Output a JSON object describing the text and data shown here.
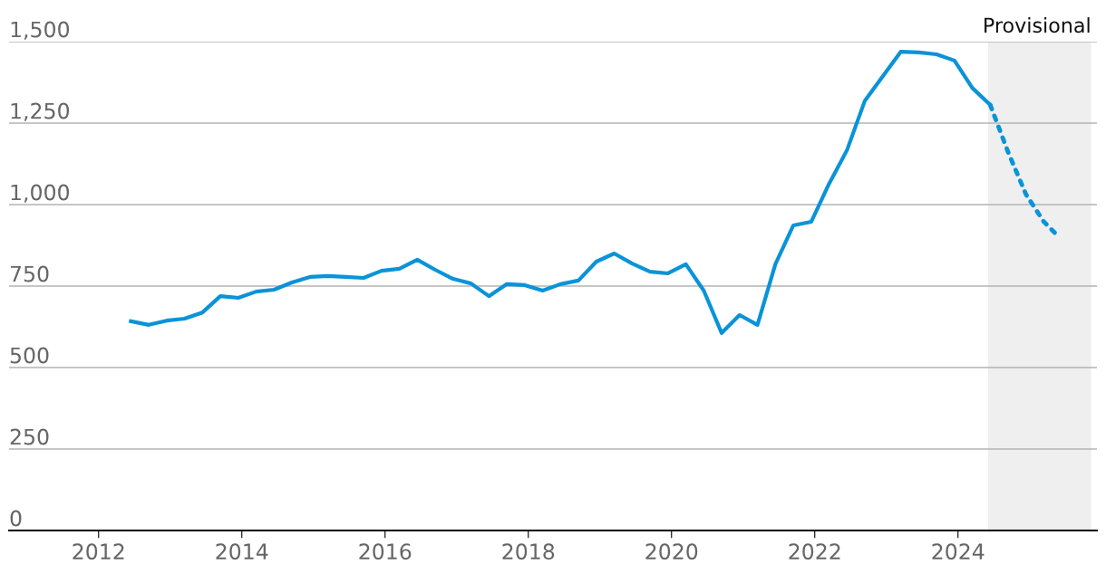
{
  "chart_data": {
    "type": "line",
    "series": [
      {
        "color": "#0a93d8",
        "line_style": "solid",
        "x": [
          2012.45,
          2012.7,
          2012.95,
          2013.2,
          2013.45,
          2013.7,
          2013.95,
          2014.2,
          2014.45,
          2014.7,
          2014.95,
          2015.2,
          2015.45,
          2015.7,
          2015.95,
          2016.2,
          2016.45,
          2016.7,
          2016.95,
          2017.2,
          2017.45,
          2017.7,
          2017.95,
          2018.2,
          2018.45,
          2018.7,
          2018.95,
          2019.2,
          2019.45,
          2019.7,
          2019.95,
          2020.2,
          2020.45,
          2020.7,
          2020.95,
          2021.2,
          2021.45,
          2021.7,
          2021.95,
          2022.2,
          2022.45,
          2022.7,
          2022.95,
          2023.2,
          2023.45,
          2023.7,
          2023.95,
          2024.2,
          2024.45
        ],
        "values": [
          642,
          631,
          644,
          650,
          669,
          719,
          714,
          733,
          739,
          761,
          778,
          781,
          778,
          775,
          797,
          803,
          831,
          800,
          772,
          758,
          719,
          756,
          753,
          736,
          756,
          767,
          825,
          850,
          819,
          794,
          789,
          817,
          736,
          606,
          661,
          631,
          817,
          936,
          947,
          1064,
          1167,
          1319,
          1394,
          1469,
          1467,
          1461,
          1442,
          1358,
          1306
        ]
      },
      {
        "color": "#0a93d8",
        "line_style": "dotted",
        "x": [
          2024.45,
          2024.7,
          2024.95,
          2025.2,
          2025.4
        ],
        "values": [
          1306,
          1161,
          1031,
          947,
          903
        ]
      }
    ],
    "xlim": [
      2010.75,
      2025.94
    ],
    "xticks": [
      2012,
      2014,
      2016,
      2018,
      2020,
      2022,
      2024
    ],
    "ylim": [
      0,
      1500
    ],
    "yticks": [
      0,
      250,
      500,
      750,
      {
        "value": 1000,
        "label": "1,000"
      },
      {
        "value": 1250,
        "label": "1,250"
      },
      {
        "value": 1500,
        "label": "1,500"
      }
    ],
    "grid": "y",
    "bands": [
      {
        "axis": "x",
        "from": 2024.42,
        "to": 2025.86,
        "label": "Provisional",
        "color": "#efefef"
      }
    ]
  }
}
